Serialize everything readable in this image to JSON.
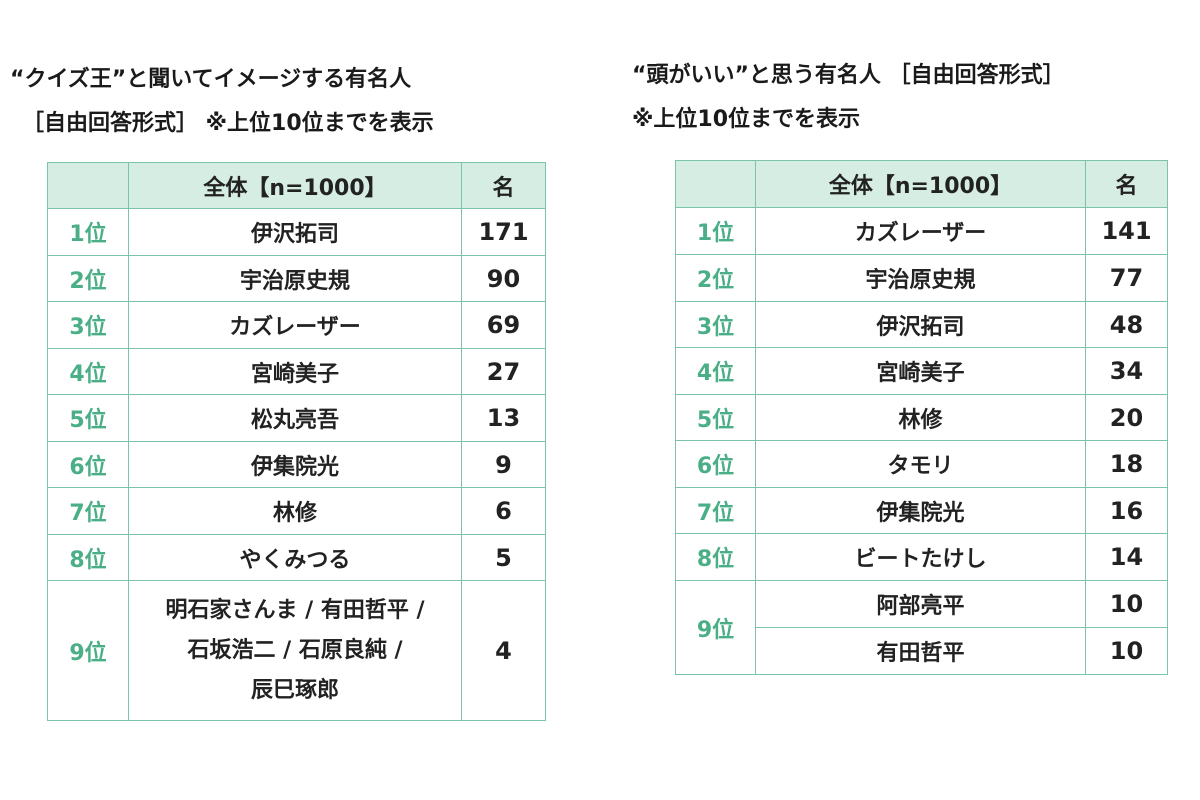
{
  "left": {
    "title_line1": "“クイズ王”と聞いてイメージする有名人",
    "title_line2": "［自由回答形式］ ※上位10位までを表示",
    "header": {
      "rank": "",
      "name": "全体【n=1000】",
      "count": "名"
    },
    "rows": [
      {
        "rank": "1位",
        "name": "伊沢拓司",
        "count": "171"
      },
      {
        "rank": "2位",
        "name": "宇治原史規",
        "count": "90"
      },
      {
        "rank": "3位",
        "name": "カズレーザー",
        "count": "69"
      },
      {
        "rank": "4位",
        "name": "宮崎美子",
        "count": "27"
      },
      {
        "rank": "5位",
        "name": "松丸亮吾",
        "count": "13"
      },
      {
        "rank": "6位",
        "name": "伊集院光",
        "count": "9"
      },
      {
        "rank": "7位",
        "name": "林修",
        "count": "6"
      },
      {
        "rank": "8位",
        "name": "やくみつる",
        "count": "5"
      },
      {
        "rank": "9位",
        "name_lines": [
          "明石家さんま / 有田哲平 /",
          "石坂浩二 / 石原良純 /",
          "辰巳琢郎"
        ],
        "count": "4"
      }
    ]
  },
  "right": {
    "title_line1": "“頭がいい”と思う有名人 ［自由回答形式］",
    "title_line2": "※上位10位までを表示",
    "header": {
      "rank": "",
      "name": "全体【n=1000】",
      "count": "名"
    },
    "rows": [
      {
        "rank": "1位",
        "name": "カズレーザー",
        "count": "141"
      },
      {
        "rank": "2位",
        "name": "宇治原史規",
        "count": "77"
      },
      {
        "rank": "3位",
        "name": "伊沢拓司",
        "count": "48"
      },
      {
        "rank": "4位",
        "name": "宮崎美子",
        "count": "34"
      },
      {
        "rank": "5位",
        "name": "林修",
        "count": "20"
      },
      {
        "rank": "6位",
        "name": "タモリ",
        "count": "18"
      },
      {
        "rank": "7位",
        "name": "伊集院光",
        "count": "16"
      },
      {
        "rank": "8位",
        "name": "ビートたけし",
        "count": "14"
      },
      {
        "rank": "9位",
        "name": "阿部亮平",
        "count": "10"
      },
      {
        "rank": "",
        "name": "有田哲平",
        "count": "10"
      }
    ]
  }
}
